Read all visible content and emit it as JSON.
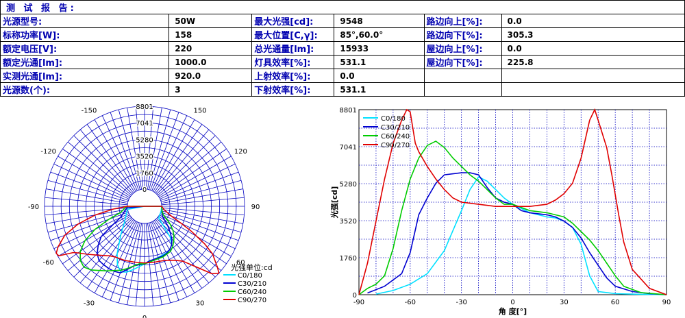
{
  "report": {
    "title": "测 试 报 告:",
    "rows": [
      [
        {
          "l": "光源型号:",
          "v": "50W"
        },
        {
          "l": "最大光强[cd]:",
          "v": "9548"
        },
        {
          "l": "路边向上[%]:",
          "v": "0.0"
        }
      ],
      [
        {
          "l": "标称功率[W]:",
          "v": "158"
        },
        {
          "l": "最大位置[C,γ]:",
          "v": "85°,60.0°"
        },
        {
          "l": "路边向下[%]:",
          "v": "305.3"
        }
      ],
      [
        {
          "l": "额定电压[V]:",
          "v": "220"
        },
        {
          "l": "总光通量[lm]:",
          "v": "15933"
        },
        {
          "l": "屋边向上[%]:",
          "v": "0.0"
        }
      ],
      [
        {
          "l": "额定光通[lm]:",
          "v": "1000.0"
        },
        {
          "l": "灯具效率[%]:",
          "v": "531.1"
        },
        {
          "l": "屋边向下[%]:",
          "v": "225.8"
        }
      ],
      [
        {
          "l": "实测光通[lm]:",
          "v": "920.0"
        },
        {
          "l": "上射效率[%]:",
          "v": "0.0"
        },
        {
          "l": "",
          "v": ""
        }
      ],
      [
        {
          "l": "光源数(个):",
          "v": "3"
        },
        {
          "l": "下射效率[%]:",
          "v": "531.1"
        },
        {
          "l": "",
          "v": ""
        }
      ]
    ]
  },
  "chart_data": [
    {
      "type": "polar",
      "unit_label": "光强单位:cd",
      "radial_ticks": [
        "8801",
        "7041",
        "5280",
        "3520",
        "1760",
        "0"
      ],
      "radial_values": [
        8801,
        7041,
        5280,
        3520,
        1760,
        0
      ],
      "angle_labels": [
        {
          "text": "-150",
          "deg": -150
        },
        {
          "text": "150",
          "deg": 150
        },
        {
          "text": "-120",
          "deg": -120
        },
        {
          "text": "120",
          "deg": 120
        },
        {
          "text": "-90",
          "deg": -90
        },
        {
          "text": "90",
          "deg": 90
        },
        {
          "text": "-60",
          "deg": -60
        },
        {
          "text": "60",
          "deg": 60
        },
        {
          "text": "-30",
          "deg": -30
        },
        {
          "text": "30",
          "deg": 30
        },
        {
          "text": "0",
          "deg": 0
        }
      ],
      "series": [
        {
          "name": "C0/180",
          "color": "#00e0ff",
          "points": [
            [
              -80,
              30
            ],
            [
              -70,
              200
            ],
            [
              -60,
              500
            ],
            [
              -50,
              1000
            ],
            [
              -40,
              2100
            ],
            [
              -30,
              4000
            ],
            [
              -25,
              5000
            ],
            [
              -20,
              5600
            ],
            [
              -15,
              5400
            ],
            [
              -10,
              5000
            ],
            [
              -5,
              4600
            ],
            [
              0,
              4300
            ],
            [
              5,
              4100
            ],
            [
              10,
              3900
            ],
            [
              15,
              3800
            ],
            [
              20,
              3700
            ],
            [
              25,
              3650
            ],
            [
              30,
              3500
            ],
            [
              35,
              3200
            ],
            [
              40,
              2400
            ],
            [
              45,
              900
            ],
            [
              50,
              150
            ],
            [
              60,
              50
            ],
            [
              75,
              20
            ],
            [
              90,
              0
            ]
          ]
        },
        {
          "name": "C30/210",
          "color": "#0000d0",
          "points": [
            [
              -85,
              80
            ],
            [
              -75,
              400
            ],
            [
              -65,
              1000
            ],
            [
              -60,
              2000
            ],
            [
              -55,
              3800
            ],
            [
              -50,
              4600
            ],
            [
              -45,
              5300
            ],
            [
              -40,
              5700
            ],
            [
              -35,
              5750
            ],
            [
              -30,
              5800
            ],
            [
              -25,
              5800
            ],
            [
              -20,
              5700
            ],
            [
              -15,
              5100
            ],
            [
              -10,
              4600
            ],
            [
              -5,
              4400
            ],
            [
              0,
              4300
            ],
            [
              5,
              4000
            ],
            [
              10,
              3900
            ],
            [
              20,
              3800
            ],
            [
              25,
              3700
            ],
            [
              30,
              3500
            ],
            [
              35,
              3200
            ],
            [
              40,
              2700
            ],
            [
              45,
              2000
            ],
            [
              50,
              1400
            ],
            [
              55,
              800
            ],
            [
              60,
              400
            ],
            [
              70,
              150
            ],
            [
              80,
              50
            ],
            [
              90,
              0
            ]
          ]
        },
        {
          "name": "C60/240",
          "color": "#00cc00",
          "points": [
            [
              -90,
              0
            ],
            [
              -85,
              300
            ],
            [
              -80,
              500
            ],
            [
              -75,
              900
            ],
            [
              -70,
              2200
            ],
            [
              -65,
              4000
            ],
            [
              -60,
              5500
            ],
            [
              -55,
              6500
            ],
            [
              -50,
              7100
            ],
            [
              -45,
              7300
            ],
            [
              -40,
              7000
            ],
            [
              -35,
              6500
            ],
            [
              -30,
              6100
            ],
            [
              -25,
              5700
            ],
            [
              -20,
              5400
            ],
            [
              -15,
              5000
            ],
            [
              -10,
              4600
            ],
            [
              -5,
              4300
            ],
            [
              0,
              4300
            ],
            [
              10,
              4000
            ],
            [
              20,
              3900
            ],
            [
              30,
              3700
            ],
            [
              35,
              3400
            ],
            [
              40,
              3000
            ],
            [
              45,
              2600
            ],
            [
              50,
              2100
            ],
            [
              55,
              1500
            ],
            [
              60,
              900
            ],
            [
              65,
              400
            ],
            [
              75,
              100
            ],
            [
              90,
              0
            ]
          ]
        },
        {
          "name": "C90/270",
          "color": "#e00000",
          "points": [
            [
              -90,
              0
            ],
            [
              -85,
              1500
            ],
            [
              -80,
              3500
            ],
            [
              -75,
              5500
            ],
            [
              -70,
              7200
            ],
            [
              -65,
              8300
            ],
            [
              -62,
              8801
            ],
            [
              -60,
              8700
            ],
            [
              -57,
              7200
            ],
            [
              -55,
              6800
            ],
            [
              -50,
              6100
            ],
            [
              -45,
              5500
            ],
            [
              -40,
              5000
            ],
            [
              -35,
              4600
            ],
            [
              -30,
              4400
            ],
            [
              -20,
              4300
            ],
            [
              -10,
              4200
            ],
            [
              0,
              4200
            ],
            [
              10,
              4200
            ],
            [
              20,
              4300
            ],
            [
              25,
              4500
            ],
            [
              30,
              4800
            ],
            [
              35,
              5300
            ],
            [
              40,
              6500
            ],
            [
              45,
              8300
            ],
            [
              48,
              8801
            ],
            [
              50,
              8300
            ],
            [
              55,
              7000
            ],
            [
              58,
              5700
            ],
            [
              62,
              3800
            ],
            [
              65,
              2500
            ],
            [
              70,
              1200
            ],
            [
              80,
              300
            ],
            [
              90,
              0
            ]
          ]
        }
      ]
    },
    {
      "type": "line",
      "xlabel": "角 度[°]",
      "ylabel": "光强[cd]",
      "x_ticks": [
        -90,
        -60,
        -30,
        0,
        30,
        60,
        90
      ],
      "y_ticks": [
        "0",
        "1760",
        "3520",
        "5280",
        "7041",
        "8801"
      ],
      "xlim": [
        -90,
        90
      ],
      "ylim": [
        0,
        8801
      ],
      "grid": true,
      "legend": "top-left",
      "series": [
        {
          "name": "C0/180",
          "color": "#00e0ff"
        },
        {
          "name": "C30/210",
          "color": "#0000d0"
        },
        {
          "name": "C60/240",
          "color": "#00cc00"
        },
        {
          "name": "C90/270",
          "color": "#e00000"
        }
      ]
    }
  ]
}
